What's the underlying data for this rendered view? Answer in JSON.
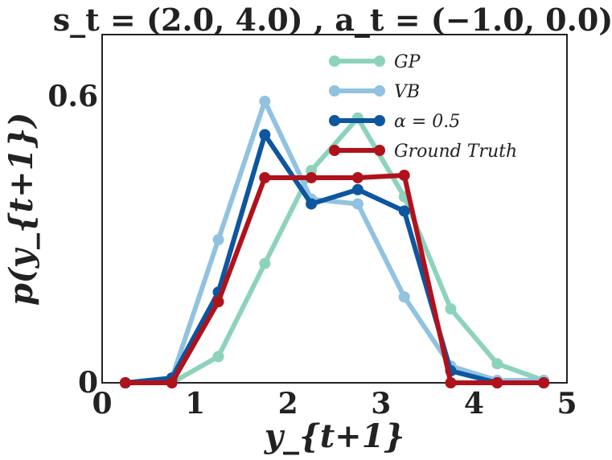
{
  "chart_data": {
    "type": "line",
    "title": "s_t = (2.0, 4.0) , a_t = (−1.0, 0.0)",
    "xlabel": "y_{t+1}",
    "ylabel": "p(y_{t+1})",
    "xlim": [
      0,
      5
    ],
    "ylim": [
      0,
      0.73
    ],
    "x_ticks": [
      0,
      1,
      2,
      3,
      4,
      5
    ],
    "x_tick_labels": [
      "0",
      "1",
      "2",
      "3",
      "4",
      "5"
    ],
    "y_ticks": [
      0,
      0.6
    ],
    "y_tick_labels": [
      "0",
      "0.6"
    ],
    "grid": false,
    "legend_position": "top-right",
    "x": [
      0.25,
      0.75,
      1.25,
      1.75,
      2.25,
      2.75,
      3.25,
      3.75,
      4.25,
      4.75
    ],
    "series": [
      {
        "name": "GP",
        "color": "#8dd3bb",
        "values": [
          0.0,
          0.0,
          0.055,
          0.25,
          0.445,
          0.555,
          0.39,
          0.155,
          0.04,
          0.005
        ]
      },
      {
        "name": "VB",
        "color": "#91c2e0",
        "values": [
          0.0,
          0.01,
          0.3,
          0.59,
          0.385,
          0.375,
          0.18,
          0.035,
          0.005,
          0.005
        ]
      },
      {
        "name": "α = 0.5",
        "color": "#0d56a0",
        "values": [
          0.0,
          0.01,
          0.19,
          0.52,
          0.375,
          0.405,
          0.36,
          0.025,
          0.0,
          0.0
        ]
      },
      {
        "name": "Ground Truth",
        "color": "#b0121b",
        "values": [
          0.0,
          0.0,
          0.17,
          0.43,
          0.43,
          0.43,
          0.435,
          0.0,
          0.0,
          0.0
        ]
      }
    ]
  }
}
